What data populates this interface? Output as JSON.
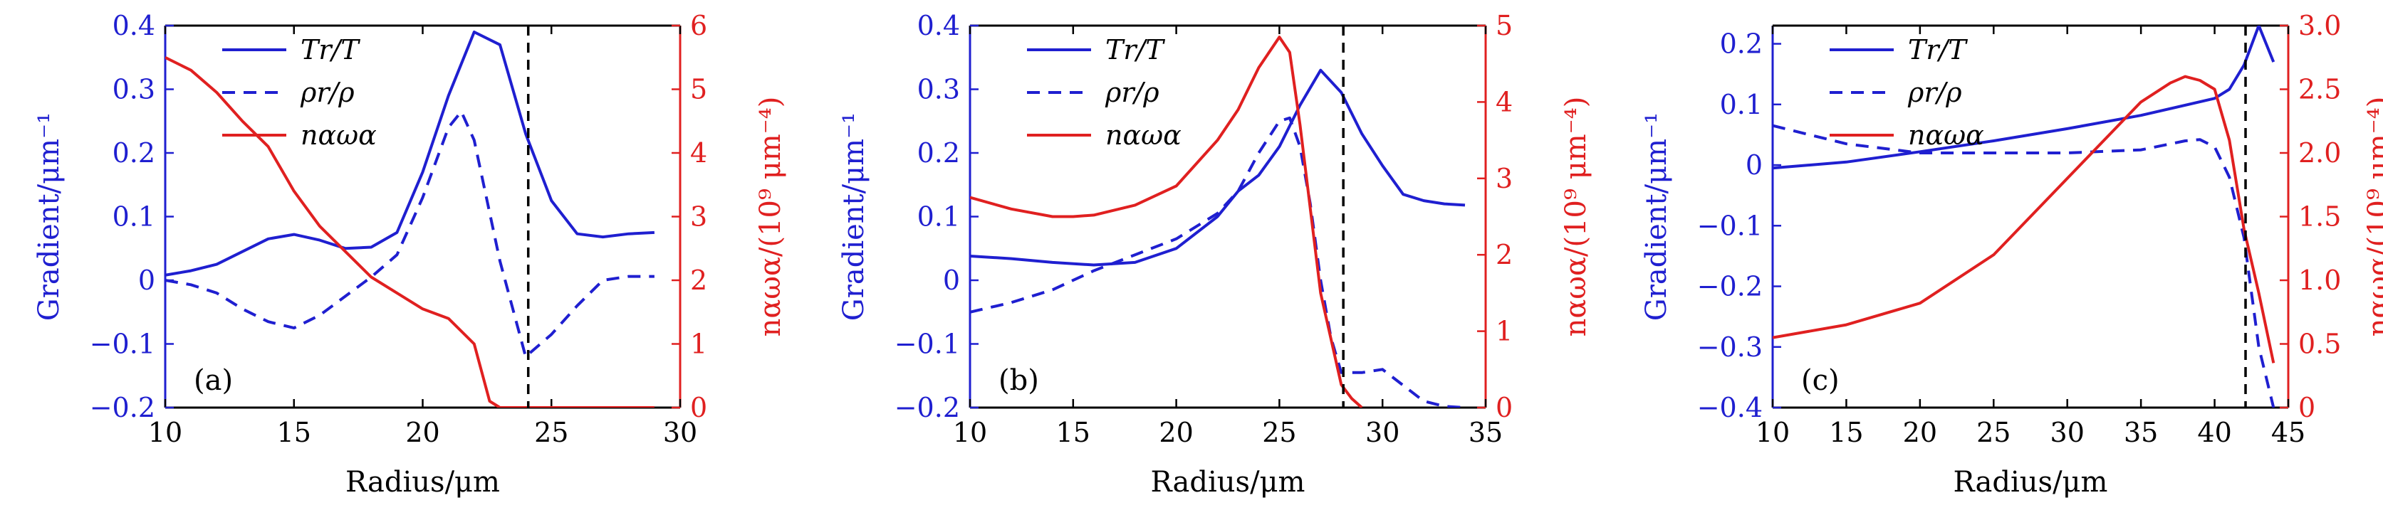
{
  "colors": {
    "blue": "#1f1fd0",
    "red": "#e02020",
    "black": "#000000"
  },
  "chart_data": [
    {
      "type": "line",
      "panel_label": "(a)",
      "xlabel": "Radius/μm",
      "ylabel_left": "Gradient/μm⁻¹",
      "ylabel_right": "nαωα/(10⁹ μm⁻⁴)",
      "xlim": [
        10,
        30
      ],
      "ylim_left": [
        -0.2,
        0.4
      ],
      "ylim_right": [
        0,
        6
      ],
      "xticks": [
        10,
        15,
        20,
        25,
        30
      ],
      "xtick_labels": [
        "10",
        "15",
        "20",
        "25",
        "30"
      ],
      "yticks_left": [
        -0.2,
        -0.1,
        0,
        0.1,
        0.2,
        0.3,
        0.4
      ],
      "ytick_labels_left": [
        "−0.2",
        "−0.1",
        "0",
        "0.1",
        "0.2",
        "0.3",
        "0.4"
      ],
      "yticks_right": [
        0,
        1,
        2,
        3,
        4,
        5,
        6
      ],
      "ytick_labels_right": [
        "0",
        "1",
        "2",
        "3",
        "4",
        "5",
        "6"
      ],
      "vline_x": 24.1,
      "legend": [
        "Tr/T",
        "ρr/ρ",
        "nαωα"
      ],
      "series": [
        {
          "name": "Tr/T",
          "axis": "left",
          "style": "solid",
          "color": "blue",
          "x": [
            10,
            11,
            12,
            13,
            14,
            15,
            16,
            17,
            18,
            19,
            20,
            21,
            22,
            23,
            24,
            25,
            26,
            27,
            28,
            29
          ],
          "y": [
            0.008,
            0.015,
            0.025,
            0.045,
            0.065,
            0.072,
            0.063,
            0.05,
            0.052,
            0.075,
            0.17,
            0.29,
            0.39,
            0.37,
            0.23,
            0.125,
            0.073,
            0.068,
            0.073,
            0.075
          ]
        },
        {
          "name": "ρr/ρ",
          "axis": "left",
          "style": "dashed",
          "color": "blue",
          "x": [
            10,
            11,
            12,
            13,
            14,
            15,
            16,
            17,
            18,
            19,
            20,
            21,
            21.5,
            22,
            23,
            24,
            25,
            26,
            27,
            28,
            29
          ],
          "y": [
            0.0,
            -0.007,
            -0.02,
            -0.045,
            -0.065,
            -0.075,
            -0.055,
            -0.025,
            0.005,
            0.04,
            0.13,
            0.24,
            0.265,
            0.22,
            0.03,
            -0.12,
            -0.085,
            -0.04,
            0.0,
            0.006,
            0.006
          ]
        },
        {
          "name": "nαωα",
          "axis": "right",
          "style": "solid",
          "color": "red",
          "x": [
            10,
            11,
            12,
            13,
            14,
            15,
            16,
            17,
            18,
            19,
            20,
            21,
            22,
            22.6,
            23,
            24,
            25,
            26,
            27,
            28,
            29
          ],
          "y": [
            5.5,
            5.3,
            4.95,
            4.5,
            4.1,
            3.4,
            2.85,
            2.45,
            2.05,
            1.8,
            1.55,
            1.4,
            1.0,
            0.1,
            0.0,
            0.0,
            0.0,
            0.0,
            0.0,
            0.0,
            0.0
          ]
        }
      ]
    },
    {
      "type": "line",
      "panel_label": "(b)",
      "xlabel": "Radius/μm",
      "ylabel_left": "Gradient/μm⁻¹",
      "ylabel_right": "nαωα/(10⁹ μm⁻⁴)",
      "xlim": [
        10,
        35
      ],
      "ylim_left": [
        -0.2,
        0.4
      ],
      "ylim_right": [
        0,
        5
      ],
      "xticks": [
        10,
        15,
        20,
        25,
        30,
        35
      ],
      "xtick_labels": [
        "10",
        "15",
        "20",
        "25",
        "30",
        "35"
      ],
      "yticks_left": [
        -0.2,
        -0.1,
        0,
        0.1,
        0.2,
        0.3,
        0.4
      ],
      "ytick_labels_left": [
        "−0.2",
        "−0.1",
        "0",
        "0.1",
        "0.2",
        "0.3",
        "0.4"
      ],
      "yticks_right": [
        0,
        1,
        2,
        3,
        4,
        5
      ],
      "ytick_labels_right": [
        "0",
        "1",
        "2",
        "3",
        "4",
        "5"
      ],
      "vline_x": 28.1,
      "legend": [
        "Tr/T",
        "ρr/ρ",
        "nαωα"
      ],
      "series": [
        {
          "name": "Tr/T",
          "axis": "left",
          "style": "solid",
          "color": "blue",
          "x": [
            10,
            12,
            14,
            16,
            18,
            20,
            22,
            23,
            24,
            25,
            26,
            27,
            28,
            29,
            30,
            31,
            32,
            33,
            34
          ],
          "y": [
            0.038,
            0.034,
            0.028,
            0.024,
            0.028,
            0.05,
            0.1,
            0.14,
            0.165,
            0.21,
            0.275,
            0.33,
            0.295,
            0.23,
            0.18,
            0.135,
            0.125,
            0.12,
            0.118
          ]
        },
        {
          "name": "ρr/ρ",
          "axis": "left",
          "style": "dashed",
          "color": "blue",
          "x": [
            10,
            12,
            14,
            16,
            18,
            20,
            22,
            23,
            24,
            25,
            25.5,
            26,
            26.5,
            27,
            27.5,
            28,
            29,
            30,
            31,
            32,
            33,
            34
          ],
          "y": [
            -0.05,
            -0.035,
            -0.015,
            0.015,
            0.04,
            0.065,
            0.105,
            0.14,
            0.2,
            0.25,
            0.255,
            0.21,
            0.12,
            0.0,
            -0.09,
            -0.145,
            -0.145,
            -0.14,
            -0.165,
            -0.19,
            -0.198,
            -0.2
          ]
        },
        {
          "name": "nαωα",
          "axis": "right",
          "style": "solid",
          "color": "red",
          "x": [
            10,
            12,
            14,
            15,
            16,
            18,
            20,
            22,
            23,
            24,
            25,
            25.5,
            26,
            27,
            28,
            28.5,
            29
          ],
          "y": [
            2.75,
            2.6,
            2.5,
            2.5,
            2.52,
            2.65,
            2.9,
            3.5,
            3.9,
            4.45,
            4.85,
            4.65,
            3.7,
            1.5,
            0.3,
            0.12,
            0.0
          ]
        }
      ]
    },
    {
      "type": "line",
      "panel_label": "(c)",
      "xlabel": "Radius/μm",
      "ylabel_left": "Gradient/μm⁻¹",
      "ylabel_right": "nαωα/(10⁹ μm⁻⁴)",
      "xlim": [
        10,
        45
      ],
      "ylim_left": [
        -0.4,
        0.23
      ],
      "ylim_right": [
        0,
        3.0
      ],
      "xticks": [
        10,
        15,
        20,
        25,
        30,
        35,
        40,
        45
      ],
      "xtick_labels": [
        "10",
        "15",
        "20",
        "25",
        "30",
        "35",
        "40",
        "45"
      ],
      "yticks_left": [
        -0.4,
        -0.3,
        -0.2,
        -0.1,
        0,
        0.1,
        0.2
      ],
      "ytick_labels_left": [
        "−0.4",
        "−0.3",
        "−0.2",
        "−0.1",
        "0",
        "0.1",
        "0.2"
      ],
      "yticks_right": [
        0,
        0.5,
        1.0,
        1.5,
        2.0,
        2.5,
        3.0
      ],
      "ytick_labels_right": [
        "0",
        "0.5",
        "1.0",
        "1.5",
        "2.0",
        "2.5",
        "3.0"
      ],
      "vline_x": 42.1,
      "legend": [
        "Tr/T",
        "ρr/ρ",
        "nαωα"
      ],
      "series": [
        {
          "name": "Tr/T",
          "axis": "left",
          "style": "solid",
          "color": "blue",
          "x": [
            10,
            15,
            20,
            25,
            30,
            35,
            40,
            41,
            42,
            43,
            44
          ],
          "y": [
            -0.005,
            0.005,
            0.022,
            0.04,
            0.06,
            0.082,
            0.11,
            0.125,
            0.165,
            0.23,
            0.17
          ]
        },
        {
          "name": "ρr/ρ",
          "axis": "left",
          "style": "dashed",
          "color": "blue",
          "x": [
            10,
            15,
            20,
            25,
            30,
            35,
            38,
            39,
            40,
            41,
            42,
            43,
            44
          ],
          "y": [
            0.065,
            0.035,
            0.02,
            0.02,
            0.02,
            0.025,
            0.04,
            0.042,
            0.03,
            -0.02,
            -0.12,
            -0.3,
            -0.4
          ]
        },
        {
          "name": "nαωα",
          "axis": "right",
          "style": "solid",
          "color": "red",
          "x": [
            10,
            15,
            20,
            25,
            30,
            35,
            37,
            38,
            39,
            40,
            41,
            42,
            43,
            44
          ],
          "y": [
            0.55,
            0.65,
            0.82,
            1.2,
            1.8,
            2.4,
            2.55,
            2.6,
            2.57,
            2.5,
            2.1,
            1.4,
            0.9,
            0.35
          ]
        }
      ]
    }
  ]
}
